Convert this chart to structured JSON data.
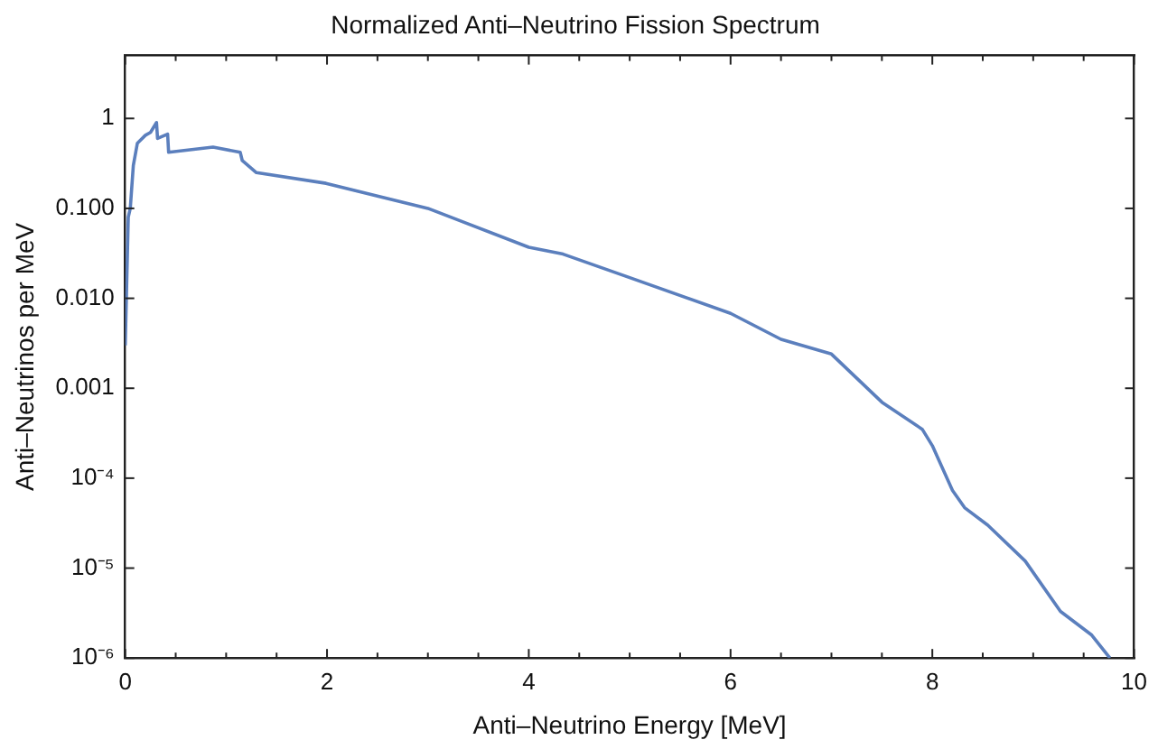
{
  "chart_data": {
    "type": "line",
    "title": "Normalized Anti–Neutrino Fission Spectrum",
    "xlabel": "Anti–Neutrino Energy [MeV]",
    "ylabel": "Anti–Neutrinos per MeV",
    "log": "y",
    "grid": false,
    "legend": false,
    "marker": "none",
    "line_style": "solid",
    "xlim": [
      0,
      10
    ],
    "ylim": [
      1e-06,
      5
    ],
    "xticks": [
      0,
      {
        "value": 0.5,
        "label": null
      },
      {
        "value": 1,
        "label": null
      },
      {
        "value": 1.5,
        "label": null
      },
      2,
      {
        "value": 2.5,
        "label": null
      },
      {
        "value": 3,
        "label": null
      },
      {
        "value": 3.5,
        "label": null
      },
      4,
      {
        "value": 4.5,
        "label": null
      },
      {
        "value": 5,
        "label": null
      },
      {
        "value": 5.5,
        "label": null
      },
      6,
      {
        "value": 6.5,
        "label": null
      },
      {
        "value": 7,
        "label": null
      },
      {
        "value": 7.5,
        "label": null
      },
      8,
      {
        "value": 8.5,
        "label": null
      },
      {
        "value": 9,
        "label": null
      },
      {
        "value": 9.5,
        "label": null
      },
      10
    ],
    "yticks": [
      {
        "value": 1e-06,
        "label": "10⁻⁶"
      },
      {
        "value": 1e-05,
        "label": "10⁻⁵"
      },
      {
        "value": 0.0001,
        "label": "10⁻⁴"
      },
      {
        "value": 0.001,
        "label": "0.001"
      },
      {
        "value": 0.01,
        "label": "0.010"
      },
      {
        "value": 0.1,
        "label": "0.100"
      },
      {
        "value": 1,
        "label": "1"
      }
    ],
    "series": [
      {
        "color": "#5b7fbd",
        "x": [
          0,
          0.03,
          0.05,
          0.08,
          0.12,
          0.2,
          0.25,
          0.31,
          0.32,
          0.42,
          0.43,
          0.87,
          1.14,
          1.16,
          1.3,
          1.99,
          3,
          4,
          4.34,
          5,
          6,
          6.5,
          7,
          7.5,
          7.9,
          8,
          8.2,
          8.32,
          8.55,
          8.92,
          9.27,
          9.58,
          9.76
        ],
        "values": [
          0.003,
          0.08,
          0.1,
          0.3,
          0.53,
          0.65,
          0.7,
          0.9,
          0.6,
          0.67,
          0.42,
          0.48,
          0.42,
          0.34,
          0.25,
          0.19,
          0.1,
          0.037,
          0.031,
          0.017,
          0.0068,
          0.0035,
          0.0024,
          0.0007,
          0.00035,
          0.00023,
          7.3e-05,
          4.7e-05,
          3e-05,
          1.2e-05,
          3.3e-06,
          1.8e-06,
          1e-06
        ]
      }
    ]
  }
}
